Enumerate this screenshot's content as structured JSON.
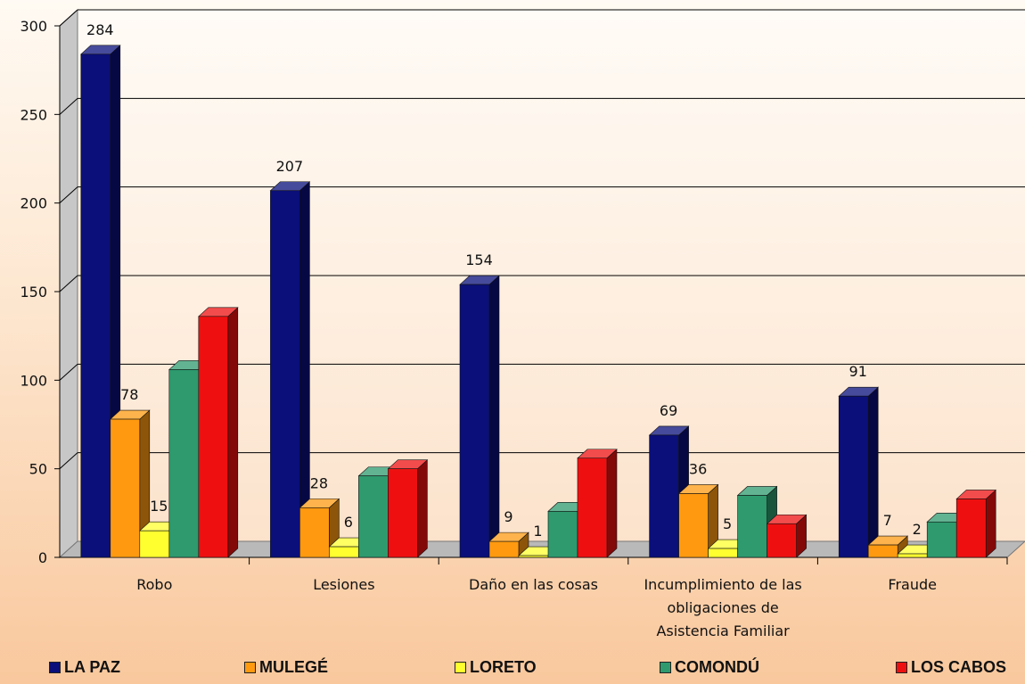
{
  "chart_data": {
    "type": "bar",
    "categories": [
      [
        "Robo"
      ],
      [
        "Lesiones"
      ],
      [
        "Daño en las cosas"
      ],
      [
        "Incumplimiento de las",
        "obligaciones de",
        "Asistencia Familiar"
      ],
      [
        "Fraude"
      ]
    ],
    "series": [
      {
        "name": "LA PAZ",
        "color": "#0a0f7a",
        "values": [
          284,
          207,
          154,
          69,
          91
        ],
        "labels": [
          true,
          true,
          true,
          true,
          true
        ]
      },
      {
        "name": "MULEGÉ",
        "color": "#ff9a10",
        "values": [
          78,
          28,
          9,
          36,
          7
        ],
        "labels": [
          true,
          true,
          true,
          true,
          true
        ]
      },
      {
        "name": "LORETO",
        "color": "#ffff30",
        "values": [
          15,
          6,
          1,
          5,
          2
        ],
        "labels": [
          true,
          true,
          true,
          true,
          true
        ]
      },
      {
        "name": "COMONDÚ",
        "color": "#2e9a6e",
        "values": [
          106,
          46,
          26,
          35,
          20
        ],
        "labels": [
          false,
          false,
          false,
          false,
          false
        ]
      },
      {
        "name": "LOS CABOS",
        "color": "#ee1010",
        "values": [
          136,
          50,
          56,
          19,
          33
        ],
        "labels": [
          false,
          false,
          false,
          false,
          false
        ]
      }
    ],
    "yticks": [
      0,
      50,
      100,
      150,
      200,
      250,
      300
    ],
    "ylim": [
      0,
      300
    ],
    "grid": true,
    "legend_position": "bottom"
  }
}
